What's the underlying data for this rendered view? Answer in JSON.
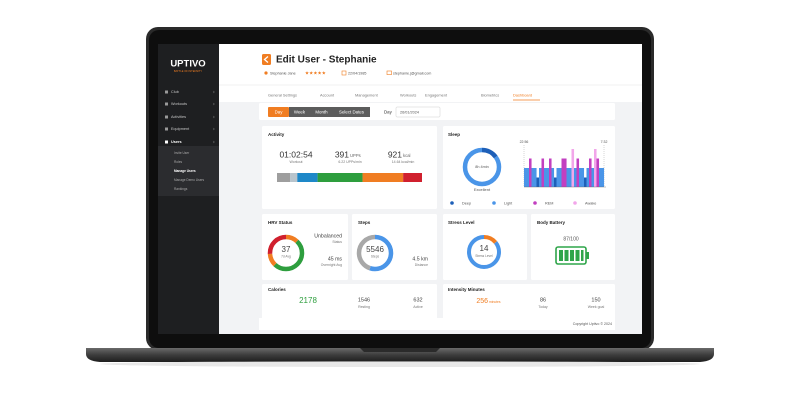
{
  "sidebar": {
    "logo": "UPTIVO",
    "tagline": "BATTLE OF INTENSITY",
    "menu": [
      "Club",
      "Workouts",
      "Activities",
      "Equipment",
      "Users"
    ],
    "submenu": [
      "Invite User",
      "Roles",
      "Manage Users",
      "Manage Demo Users",
      "Rankings"
    ]
  },
  "header": {
    "title": "Edit User - Stephanie",
    "user": "Stephanie Jane",
    "dob": "22/04/1985",
    "email": "stephanie.j@gmail.com"
  },
  "tabs": [
    "General Settings",
    "Account",
    "Management",
    "Workouts",
    "Engagement",
    "Biometrics",
    "Dashboard"
  ],
  "filters": {
    "ranges": [
      "Day",
      "Week",
      "Month",
      "Select Dates"
    ],
    "day_label": "Day",
    "date": "26/01/2024"
  },
  "activity": {
    "title": "Activity",
    "stats": [
      {
        "value": "01:02:54",
        "sub": "Workout"
      },
      {
        "value": 391,
        "unit": "UPPs",
        "sub": "6.22 UPPs/min"
      },
      {
        "value": 921,
        "unit": "kcal",
        "sub": "14.64 kcal/min"
      }
    ],
    "zones": [
      9,
      5,
      14,
      31,
      28,
      13
    ],
    "zone_colors": [
      "#9e9e9e",
      "#b8c4cc",
      "#1e88c8",
      "#2e9e3e",
      "#f07d22",
      "#d0202e"
    ]
  },
  "sleep": {
    "title": "Sleep",
    "duration": "8h 4min",
    "quality": "Excellent",
    "start": "22:56",
    "end": "7:32",
    "legend": [
      "Deep",
      "Light",
      "REM",
      "Awake"
    ],
    "stage_colors": [
      "#1d5fb8",
      "#4a95e8",
      "#c23fc0",
      "#f2a6ea"
    ],
    "stages": [
      1,
      1,
      2,
      1,
      1,
      0,
      1,
      2,
      1,
      1,
      2,
      1,
      0,
      1,
      1,
      2,
      2,
      1,
      1,
      3,
      1,
      2,
      1,
      1,
      0,
      1,
      2,
      1,
      3,
      2,
      1,
      1
    ]
  },
  "hrv": {
    "title": "HRV Status",
    "value": 37,
    "value_label": "7d Avg",
    "status": "Unbalanced",
    "status_label": "Status",
    "overnight": "45 ms",
    "overnight_label": "Overnight Avg"
  },
  "steps": {
    "title": "Steps",
    "value": 5546,
    "value_label": "Steps",
    "distance": "4.5 km",
    "distance_label": "Distance"
  },
  "stress": {
    "title": "Stress Level",
    "value": 14,
    "value_label": "Stress Level"
  },
  "battery": {
    "title": "Body Battery",
    "value": "87/100"
  },
  "calories": {
    "title": "Calories",
    "total": 2178,
    "resting": 1546,
    "resting_label": "Resting",
    "active": 632,
    "active_label": "Active"
  },
  "intensity": {
    "title": "Intensity Minutes",
    "total": 256,
    "total_unit": "minutes",
    "today": 86,
    "today_label": "Today",
    "goal": 150,
    "goal_label": "Week goal"
  },
  "footer": "Copyright Uptivo © 2024"
}
